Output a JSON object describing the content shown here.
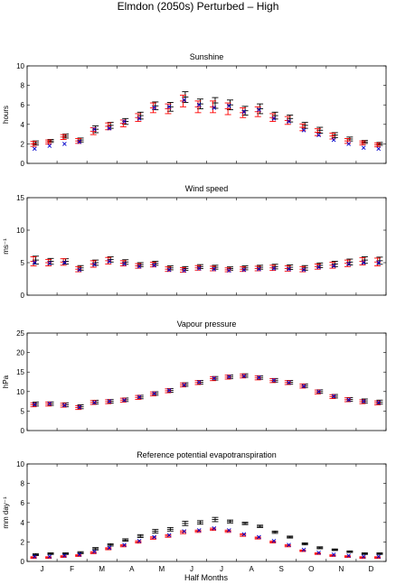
{
  "figure": {
    "title": "Elmdon (2050s) Perturbed – High",
    "xlabel": "Half Months",
    "month_labels": [
      "J",
      "F",
      "M",
      "A",
      "M",
      "J",
      "J",
      "A",
      "S",
      "O",
      "N",
      "D"
    ]
  },
  "colors": {
    "observed": "#000000",
    "control": "#ff0000",
    "scenario": "#0000cc",
    "axis": "#000000",
    "background": "#ffffff"
  },
  "chart_data": [
    {
      "type": "scatter",
      "title": "Sunshine",
      "ylabel": "hours",
      "ylim": [
        0,
        10
      ],
      "yticks": [
        0,
        2,
        4,
        6,
        8,
        10
      ],
      "x": [
        1,
        2,
        3,
        4,
        5,
        6,
        7,
        8,
        9,
        10,
        11,
        12,
        13,
        14,
        15,
        16,
        17,
        18,
        19,
        20,
        21,
        22,
        23,
        24
      ],
      "series": [
        {
          "role": "observed",
          "marker": "errorbar",
          "values": [
            2.1,
            2.3,
            2.8,
            2.4,
            3.5,
            3.9,
            4.3,
            4.9,
            5.9,
            5.8,
            6.8,
            6.1,
            6.2,
            6.0,
            5.4,
            5.6,
            4.9,
            4.6,
            3.9,
            3.4,
            2.9,
            2.5,
            2.2,
            2.0
          ],
          "err": [
            0.2,
            0.15,
            0.2,
            0.2,
            0.35,
            0.3,
            0.3,
            0.35,
            0.4,
            0.45,
            0.55,
            0.5,
            0.55,
            0.5,
            0.45,
            0.5,
            0.35,
            0.35,
            0.3,
            0.3,
            0.25,
            0.2,
            0.15,
            0.15
          ]
        },
        {
          "role": "control",
          "marker": "errorbar",
          "values": [
            2.0,
            2.2,
            2.7,
            2.3,
            3.3,
            3.8,
            4.1,
            4.7,
            5.7,
            5.6,
            6.4,
            5.8,
            5.8,
            5.6,
            5.2,
            5.3,
            4.7,
            4.4,
            3.7,
            3.2,
            2.8,
            2.3,
            2.1,
            1.9
          ],
          "err": [
            0.25,
            0.2,
            0.25,
            0.25,
            0.35,
            0.35,
            0.35,
            0.4,
            0.5,
            0.5,
            0.6,
            0.6,
            0.6,
            0.6,
            0.5,
            0.5,
            0.4,
            0.4,
            0.35,
            0.35,
            0.3,
            0.25,
            0.2,
            0.2
          ]
        },
        {
          "role": "scenario",
          "marker": "x",
          "values": [
            1.5,
            1.8,
            2.0,
            2.2,
            3.5,
            3.6,
            4.3,
            4.6,
            5.7,
            5.8,
            6.5,
            6.0,
            5.7,
            5.9,
            5.3,
            5.5,
            4.6,
            4.3,
            3.4,
            2.9,
            2.4,
            2.0,
            1.6,
            1.5
          ]
        }
      ]
    },
    {
      "type": "scatter",
      "title": "Wind speed",
      "ylabel": "ms⁻¹",
      "ylim": [
        0,
        15
      ],
      "yticks": [
        0,
        5,
        10,
        15
      ],
      "x": [
        1,
        2,
        3,
        4,
        5,
        6,
        7,
        8,
        9,
        10,
        11,
        12,
        13,
        14,
        15,
        16,
        17,
        18,
        19,
        20,
        21,
        22,
        23,
        24
      ],
      "series": [
        {
          "role": "observed",
          "marker": "errorbar",
          "values": [
            5.4,
            5.2,
            5.2,
            4.2,
            5.0,
            5.5,
            5.1,
            4.7,
            4.9,
            4.2,
            4.1,
            4.4,
            4.3,
            4.1,
            4.2,
            4.3,
            4.4,
            4.3,
            4.2,
            4.6,
            4.8,
            5.1,
            5.4,
            5.3
          ],
          "err": [
            0.6,
            0.45,
            0.4,
            0.35,
            0.4,
            0.4,
            0.35,
            0.3,
            0.3,
            0.3,
            0.3,
            0.3,
            0.3,
            0.25,
            0.3,
            0.3,
            0.35,
            0.35,
            0.35,
            0.35,
            0.4,
            0.45,
            0.5,
            0.55
          ]
        },
        {
          "role": "control",
          "marker": "errorbar",
          "values": [
            5.2,
            5.0,
            5.1,
            4.0,
            4.8,
            5.3,
            4.9,
            4.5,
            4.7,
            4.0,
            3.9,
            4.2,
            4.1,
            3.9,
            4.0,
            4.1,
            4.2,
            4.1,
            4.0,
            4.4,
            4.6,
            4.9,
            5.2,
            5.1
          ],
          "err": [
            0.7,
            0.5,
            0.5,
            0.4,
            0.5,
            0.5,
            0.4,
            0.35,
            0.35,
            0.35,
            0.35,
            0.35,
            0.35,
            0.3,
            0.35,
            0.35,
            0.4,
            0.4,
            0.4,
            0.4,
            0.45,
            0.5,
            0.55,
            0.6
          ]
        },
        {
          "role": "scenario",
          "marker": "x",
          "values": [
            5.0,
            4.9,
            5.0,
            3.9,
            4.7,
            5.2,
            4.8,
            4.4,
            4.6,
            3.9,
            3.8,
            4.1,
            4.0,
            3.8,
            3.9,
            4.0,
            4.1,
            4.0,
            3.9,
            4.3,
            4.5,
            4.8,
            5.0,
            5.0
          ]
        }
      ]
    },
    {
      "type": "scatter",
      "title": "Vapour pressure",
      "ylabel": "hPa",
      "ylim": [
        0,
        25
      ],
      "yticks": [
        0,
        5,
        10,
        15,
        20,
        25
      ],
      "x": [
        1,
        2,
        3,
        4,
        5,
        6,
        7,
        8,
        9,
        10,
        11,
        12,
        13,
        14,
        15,
        16,
        17,
        18,
        19,
        20,
        21,
        22,
        23,
        24
      ],
      "series": [
        {
          "role": "observed",
          "marker": "errorbar",
          "values": [
            6.8,
            6.9,
            6.6,
            6.1,
            7.3,
            7.5,
            7.9,
            8.6,
            9.5,
            10.3,
            11.8,
            12.4,
            13.4,
            13.8,
            14.1,
            13.6,
            12.9,
            12.4,
            11.5,
            10.0,
            8.8,
            8.0,
            7.6,
            7.3
          ],
          "err": [
            0.5,
            0.45,
            0.5,
            0.5,
            0.45,
            0.45,
            0.45,
            0.45,
            0.45,
            0.45,
            0.45,
            0.45,
            0.45,
            0.45,
            0.45,
            0.45,
            0.45,
            0.45,
            0.45,
            0.45,
            0.45,
            0.45,
            0.5,
            0.5
          ]
        },
        {
          "role": "control",
          "marker": "errorbar",
          "values": [
            6.6,
            6.8,
            6.5,
            5.9,
            7.2,
            7.4,
            7.8,
            8.5,
            9.4,
            10.2,
            11.7,
            12.3,
            13.3,
            13.7,
            14.0,
            13.5,
            12.8,
            12.3,
            11.4,
            9.9,
            8.7,
            7.9,
            7.4,
            7.1
          ],
          "err": [
            0.5,
            0.5,
            0.5,
            0.5,
            0.5,
            0.5,
            0.5,
            0.5,
            0.5,
            0.5,
            0.5,
            0.5,
            0.5,
            0.5,
            0.5,
            0.5,
            0.5,
            0.5,
            0.5,
            0.5,
            0.5,
            0.5,
            0.5,
            0.5
          ]
        },
        {
          "role": "scenario",
          "marker": "x",
          "values": [
            6.7,
            6.9,
            6.5,
            6.0,
            7.2,
            7.5,
            7.8,
            8.6,
            9.5,
            10.3,
            11.7,
            12.4,
            13.4,
            13.8,
            14.0,
            13.6,
            12.9,
            12.3,
            11.4,
            10.0,
            8.8,
            7.9,
            7.5,
            7.2
          ]
        }
      ]
    },
    {
      "type": "scatter",
      "title": "Reference potential evapotranspiration",
      "ylabel": "mm day⁻¹",
      "ylim": [
        0,
        10
      ],
      "yticks": [
        0,
        2,
        4,
        6,
        8,
        10
      ],
      "x": [
        1,
        2,
        3,
        4,
        5,
        6,
        7,
        8,
        9,
        10,
        11,
        12,
        13,
        14,
        15,
        16,
        17,
        18,
        19,
        20,
        21,
        22,
        23,
        24
      ],
      "series": [
        {
          "role": "observed",
          "marker": "errorbar",
          "values": [
            0.7,
            0.8,
            0.8,
            0.9,
            1.3,
            1.7,
            2.2,
            2.6,
            3.1,
            3.3,
            3.9,
            4.0,
            4.3,
            4.1,
            3.9,
            3.6,
            3.0,
            2.5,
            1.8,
            1.4,
            1.2,
            1.0,
            0.8,
            0.8
          ],
          "err": [
            0.1,
            0.08,
            0.08,
            0.1,
            0.12,
            0.12,
            0.12,
            0.15,
            0.18,
            0.18,
            0.22,
            0.18,
            0.22,
            0.15,
            0.12,
            0.12,
            0.12,
            0.1,
            0.1,
            0.1,
            0.08,
            0.08,
            0.08,
            0.08
          ]
        },
        {
          "role": "control",
          "marker": "errorbar",
          "values": [
            0.4,
            0.4,
            0.5,
            0.6,
            0.9,
            1.3,
            1.6,
            2.0,
            2.4,
            2.6,
            3.0,
            3.1,
            3.3,
            3.1,
            2.7,
            2.4,
            2.0,
            1.6,
            1.1,
            0.8,
            0.6,
            0.5,
            0.4,
            0.4
          ],
          "err": [
            0.08,
            0.08,
            0.08,
            0.08,
            0.1,
            0.1,
            0.1,
            0.12,
            0.12,
            0.12,
            0.15,
            0.12,
            0.12,
            0.12,
            0.12,
            0.1,
            0.1,
            0.1,
            0.08,
            0.08,
            0.08,
            0.08,
            0.08,
            0.08
          ]
        },
        {
          "role": "scenario",
          "marker": "x",
          "values": [
            0.5,
            0.5,
            0.6,
            0.7,
            1.0,
            1.4,
            1.7,
            2.1,
            2.5,
            2.7,
            3.1,
            3.2,
            3.4,
            3.2,
            2.8,
            2.5,
            2.1,
            1.7,
            1.2,
            0.9,
            0.7,
            0.6,
            0.5,
            0.5
          ]
        }
      ]
    }
  ]
}
